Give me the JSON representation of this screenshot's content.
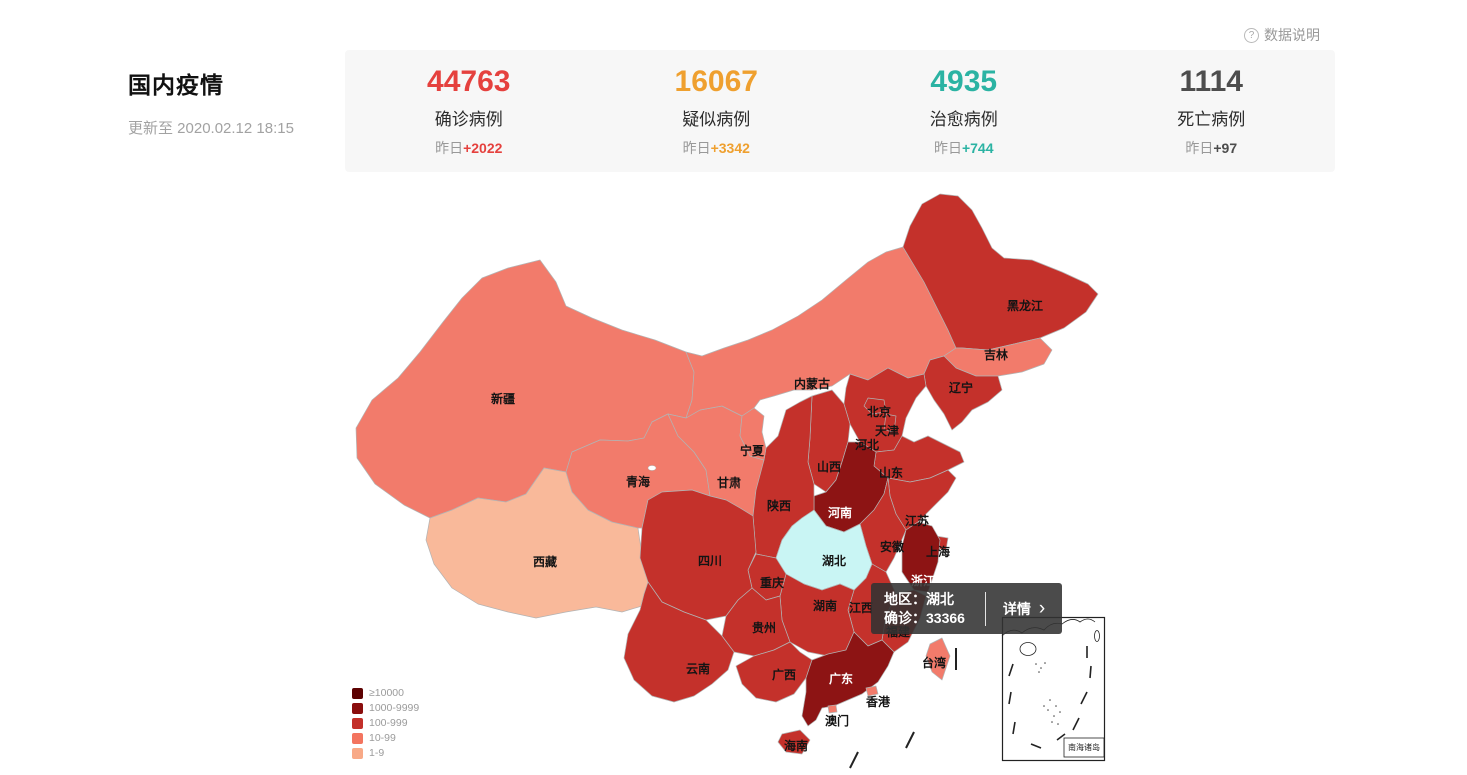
{
  "header": {
    "title": "国内疫情",
    "updated": "更新至 2020.02.12 18:15",
    "data_note": "数据说明"
  },
  "icons": {
    "help": "?",
    "chevron_right": "›"
  },
  "stats": [
    {
      "key": "confirmed",
      "value": "44763",
      "label": "确诊病例",
      "yesterday_prefix": "昨日",
      "delta": "+2022",
      "color": "#e5413e"
    },
    {
      "key": "suspected",
      "value": "16067",
      "label": "疑似病例",
      "yesterday_prefix": "昨日",
      "delta": "+3342",
      "color": "#efa02f"
    },
    {
      "key": "cured",
      "value": "4935",
      "label": "治愈病例",
      "yesterday_prefix": "昨日",
      "delta": "+744",
      "color": "#2bb3a3"
    },
    {
      "key": "dead",
      "value": "1114",
      "label": "死亡病例",
      "yesterday_prefix": "昨日",
      "delta": "+97",
      "color": "#4d4d4d"
    }
  ],
  "tooltip": {
    "region_line": "地区：湖北",
    "confirmed_line": "确诊：33366",
    "detail_label": "详情"
  },
  "legend": [
    {
      "label": "≥10000",
      "color": "#5d0202"
    },
    {
      "label": "1000-9999",
      "color": "#8a0d0d"
    },
    {
      "label": "100-999",
      "color": "#c3302a"
    },
    {
      "label": "10-99",
      "color": "#f3745f"
    },
    {
      "label": "1-9",
      "color": "#f8a987"
    }
  ],
  "map": {
    "inset_label": "南海诸岛",
    "level_colors": {
      "gte10000": "#5d0202",
      "1000": "#8d1414",
      "100": "#c4312b",
      "10": "#f27b6b",
      "1": "#f9b99a",
      "selected": "#c9f5f4"
    },
    "border_color": "#b3b3b3",
    "label_color_dark": "#141414",
    "label_color_light": "#ffffff",
    "provinces": [
      {
        "id": "xinjiang",
        "name": "新疆",
        "level": "10"
      },
      {
        "id": "xizang",
        "name": "西藏",
        "level": "1"
      },
      {
        "id": "qinghai",
        "name": "青海",
        "level": "10"
      },
      {
        "id": "gansu",
        "name": "甘肃",
        "level": "10"
      },
      {
        "id": "neimenggu",
        "name": "内蒙古",
        "level": "10"
      },
      {
        "id": "heilongjiang",
        "name": "黑龙江",
        "level": "100"
      },
      {
        "id": "jilin",
        "name": "吉林",
        "level": "10"
      },
      {
        "id": "liaoning",
        "name": "辽宁",
        "level": "100"
      },
      {
        "id": "hebei",
        "name": "河北",
        "level": "100"
      },
      {
        "id": "beijing",
        "name": "北京",
        "level": "100"
      },
      {
        "id": "tianjin",
        "name": "天津",
        "level": "100"
      },
      {
        "id": "shanxi",
        "name": "山西",
        "level": "100"
      },
      {
        "id": "shandong",
        "name": "山东",
        "level": "100"
      },
      {
        "id": "henan",
        "name": "河南",
        "level": "1000",
        "light_label": true
      },
      {
        "id": "jiangsu",
        "name": "江苏",
        "level": "100"
      },
      {
        "id": "anhui",
        "name": "安徽",
        "level": "100"
      },
      {
        "id": "shanghai",
        "name": "上海",
        "level": "100"
      },
      {
        "id": "zhejiang",
        "name": "浙江",
        "level": "1000",
        "light_label": true
      },
      {
        "id": "fujian",
        "name": "福建",
        "level": "100"
      },
      {
        "id": "jiangxi",
        "name": "江西",
        "level": "100"
      },
      {
        "id": "shaanxi",
        "name": "陕西",
        "level": "100"
      },
      {
        "id": "ningxia",
        "name": "宁夏",
        "level": "10"
      },
      {
        "id": "hubei",
        "name": "湖北",
        "level": "selected"
      },
      {
        "id": "hunan",
        "name": "湖南",
        "level": "100"
      },
      {
        "id": "chongqing",
        "name": "重庆",
        "level": "100"
      },
      {
        "id": "guizhou",
        "name": "贵州",
        "level": "100"
      },
      {
        "id": "sichuan",
        "name": "四川",
        "level": "100"
      },
      {
        "id": "yunnan",
        "name": "云南",
        "level": "100"
      },
      {
        "id": "guangxi",
        "name": "广西",
        "level": "100"
      },
      {
        "id": "guangdong",
        "name": "广东",
        "level": "1000",
        "light_label": true
      },
      {
        "id": "hainan",
        "name": "海南",
        "level": "100"
      },
      {
        "id": "taiwan",
        "name": "台湾",
        "level": "10"
      },
      {
        "id": "hongkong",
        "name": "香港",
        "level": "10"
      },
      {
        "id": "macau",
        "name": "澳门",
        "level": "10"
      }
    ]
  },
  "chart_data": {
    "type": "choropleth_map",
    "title": "国内疫情",
    "updated": "2020.02.12 18:15",
    "metrics": [
      {
        "name": "确诊病例",
        "value": 44763,
        "yesterday_change": 2022
      },
      {
        "name": "疑似病例",
        "value": 16067,
        "yesterday_change": 3342
      },
      {
        "name": "治愈病例",
        "value": 4935,
        "yesterday_change": 744
      },
      {
        "name": "死亡病例",
        "value": 1114,
        "yesterday_change": 97
      }
    ],
    "legend_buckets": [
      "≥10000",
      "1000-9999",
      "100-999",
      "10-99",
      "1-9"
    ],
    "selected_region": {
      "name": "湖北",
      "confirmed": 33366
    },
    "region_buckets": {
      "≥10000": [
        "湖北"
      ],
      "1000-9999": [
        "河南",
        "浙江",
        "广东"
      ],
      "100-999": [
        "黑龙江",
        "辽宁",
        "北京",
        "天津",
        "河北",
        "山西",
        "山东",
        "江苏",
        "安徽",
        "上海",
        "江西",
        "福建",
        "陕西",
        "湖南",
        "重庆",
        "贵州",
        "四川",
        "云南",
        "广西",
        "海南"
      ],
      "10-99": [
        "新疆",
        "青海",
        "甘肃",
        "宁夏",
        "内蒙古",
        "吉林",
        "台湾",
        "香港",
        "澳门"
      ],
      "1-9": [
        "西藏"
      ]
    },
    "legend_position": "bottom-left"
  }
}
